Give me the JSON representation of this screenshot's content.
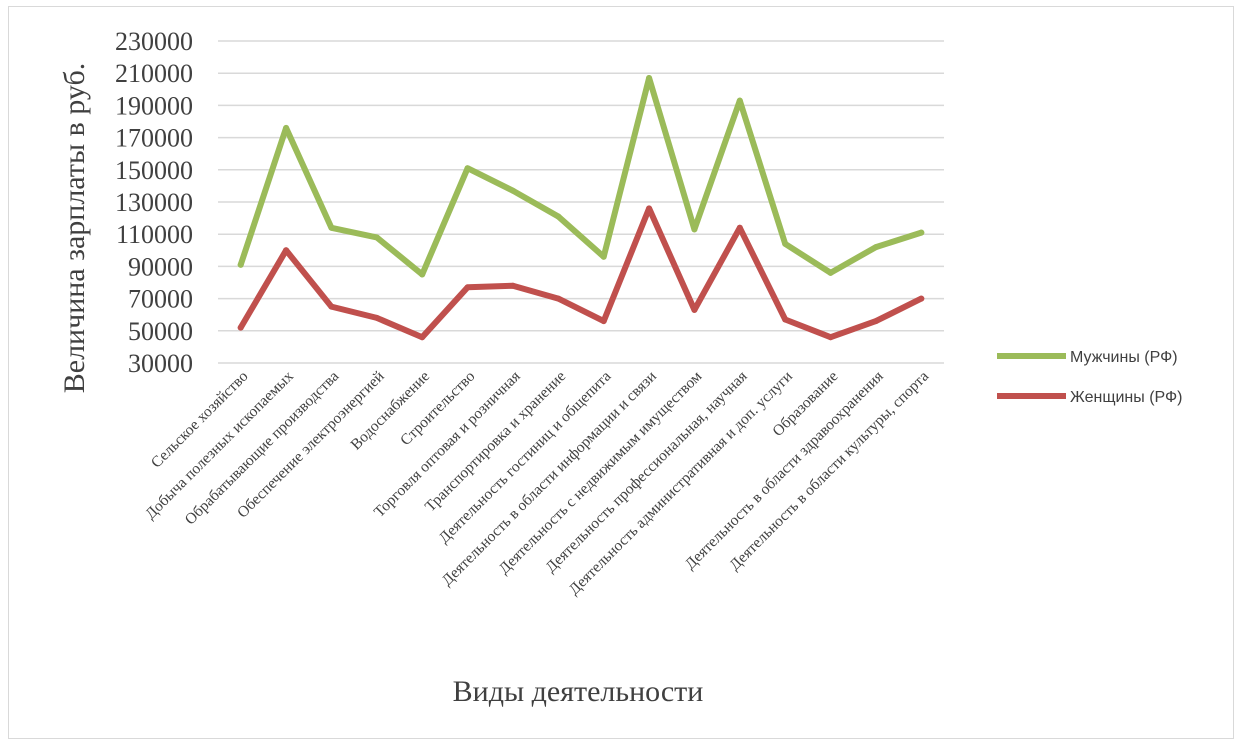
{
  "chart_data": {
    "type": "line",
    "title": "",
    "xlabel": "Виды деятельности",
    "ylabel": "Величина зарплаты в руб.",
    "ylim": [
      30000,
      230000
    ],
    "yticks": [
      30000,
      50000,
      70000,
      90000,
      110000,
      130000,
      150000,
      170000,
      190000,
      210000,
      230000
    ],
    "grid": true,
    "legend_position": "right",
    "categories": [
      "Сельское хозяйство",
      "Добыча полезных ископаемых",
      "Обрабатывающие производства",
      "Обеспечение электроэнергией",
      "Водоснабжение",
      "Строительство",
      "Торговля оптовая и розничная",
      "Транспортировка и хранение",
      "Деятельность гостиниц и общепита",
      "Деятельность в области информации и связи",
      "Деятельность с недвижимым имуществом",
      "Деятельность профессиональная, научная",
      "Деятельность административная и доп. услуги",
      "Образование",
      "Деятельность в области здравоохранения",
      "Деятельность в области культуры, спорта"
    ],
    "series": [
      {
        "name": "Мужчины (РФ)",
        "color": "#9bbb59",
        "values": [
          91000,
          176000,
          114000,
          108000,
          85000,
          151000,
          137000,
          121000,
          96000,
          207000,
          113000,
          193000,
          104000,
          86000,
          102000,
          111000
        ]
      },
      {
        "name": "Женщины (РФ)",
        "color": "#c0504d",
        "values": [
          52000,
          100000,
          65000,
          58000,
          46000,
          77000,
          78000,
          70000,
          56000,
          126000,
          63000,
          114000,
          57000,
          46000,
          56000,
          70000
        ]
      }
    ]
  }
}
